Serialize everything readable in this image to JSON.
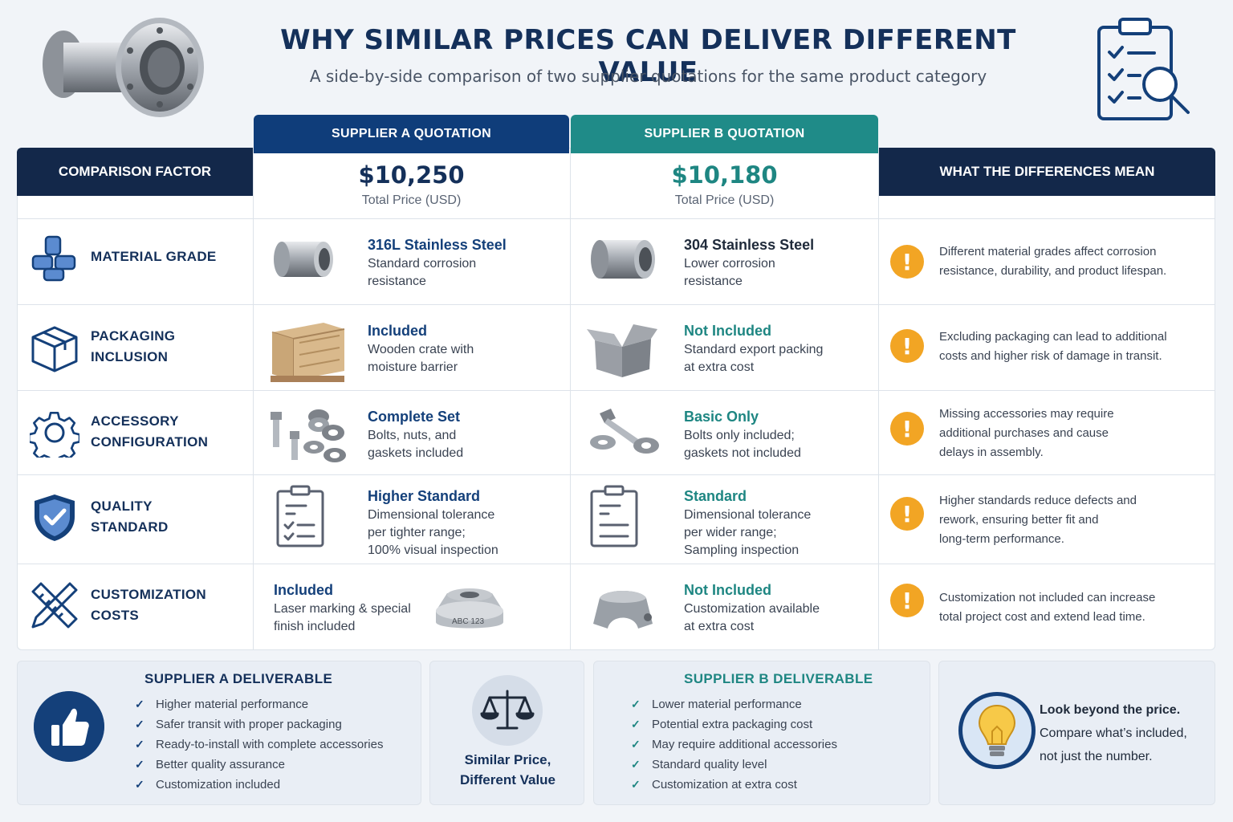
{
  "header": {
    "title": "WHY SIMILAR PRICES CAN DELIVER DIFFERENT VALUE",
    "subtitle": "A side-by-side comparison of two supplier quotations for the same product category"
  },
  "table": {
    "factor_header": "COMPARISON FACTOR",
    "meaning_header": "WHAT THE DIFFERENCES MEAN",
    "supplier_a": {
      "tab": "SUPPLIER A QUOTATION",
      "price": "$10,250",
      "price_label": "Total Price (USD)"
    },
    "supplier_b": {
      "tab": "SUPPLIER B QUOTATION",
      "price": "$10,180",
      "price_label": "Total Price (USD)"
    },
    "rows": [
      {
        "factor": [
          "MATERIAL GRADE"
        ],
        "factor_icon": "material-stack-icon",
        "a": {
          "heading": "316L Stainless Steel",
          "lines": [
            "Standard corrosion",
            "resistance"
          ]
        },
        "b": {
          "heading": "304 Stainless Steel",
          "lines": [
            "Lower corrosion",
            "resistance"
          ]
        },
        "meaning": [
          "Different material grades affect corrosion",
          "resistance, durability, and product lifespan."
        ]
      },
      {
        "factor": [
          "PACKAGING",
          "INCLUSION"
        ],
        "factor_icon": "box-icon",
        "a": {
          "heading": "Included",
          "lines": [
            "Wooden crate with",
            "moisture barrier"
          ]
        },
        "b": {
          "heading": "Not Included",
          "lines": [
            "Standard export packing",
            "at extra cost"
          ]
        },
        "meaning": [
          "Excluding packaging can lead to additional",
          "costs and higher risk of damage in transit."
        ]
      },
      {
        "factor": [
          "ACCESSORY",
          "CONFIGURATION"
        ],
        "factor_icon": "gear-icon",
        "a": {
          "heading": "Complete Set",
          "lines": [
            "Bolts, nuts, and",
            "gaskets included"
          ]
        },
        "b": {
          "heading": "Basic Only",
          "lines": [
            "Bolts only included;",
            "gaskets not included"
          ]
        },
        "meaning": [
          "Missing accessories may require",
          "additional purchases and cause",
          "delays in assembly."
        ]
      },
      {
        "factor": [
          "QUALITY",
          "STANDARD"
        ],
        "factor_icon": "shield-check-icon",
        "a": {
          "heading": "Higher Standard",
          "lines": [
            "Dimensional tolerance",
            "per tighter range;",
            "100% visual inspection"
          ]
        },
        "b": {
          "heading": "Standard",
          "lines": [
            "Dimensional tolerance",
            "per wider range;",
            "Sampling inspection"
          ]
        },
        "meaning": [
          "Higher standards reduce defects and",
          "rework, ensuring better fit and",
          "long-term performance."
        ]
      },
      {
        "factor": [
          "CUSTOMIZATION",
          "COSTS"
        ],
        "factor_icon": "ruler-pencil-icon",
        "a": {
          "heading": "Included",
          "lines": [
            "Laser marking & special",
            "finish included"
          ],
          "engraving": "ABC 123"
        },
        "b": {
          "heading": "Not Included",
          "lines": [
            "Customization available",
            "at extra cost"
          ]
        },
        "meaning": [
          "Customization not included can increase",
          "total project cost and extend lead time."
        ]
      }
    ]
  },
  "summary": {
    "a": {
      "title": "SUPPLIER  A  DELIVERABLE",
      "items": [
        "Higher material performance",
        "Safer transit with proper packaging",
        "Ready-to-install with complete accessories",
        "Better quality assurance",
        "Customization included"
      ]
    },
    "middle": {
      "lines": [
        "Similar Price,",
        "Different Value"
      ]
    },
    "b": {
      "title": "SUPPLIER B DELIVERABLE",
      "items": [
        "Lower material performance",
        "Potential extra packaging cost",
        "May require additional accessories",
        "Standard quality level",
        "Customization at extra cost"
      ]
    },
    "tip": {
      "bold": "Look beyond the price.",
      "lines": [
        "Compare what’s included,",
        "not just the number."
      ]
    }
  },
  "colors": {
    "navy": "#14305a",
    "teal": "#1e8682",
    "warning": "#f2a524"
  }
}
